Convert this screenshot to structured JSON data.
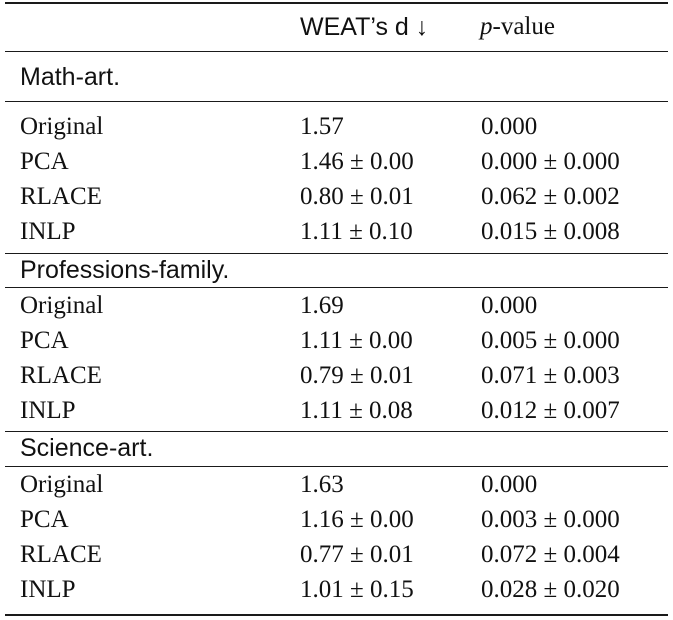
{
  "table": {
    "header": {
      "method": "",
      "weat_d": "WEAT’s d ↓",
      "p_value_var": "p",
      "p_value_suffix": "-value"
    },
    "sections": [
      {
        "title": "Math-art.",
        "rows": [
          {
            "method": "Original",
            "weat_d": "1.57",
            "p_value": "0.000"
          },
          {
            "method": "PCA",
            "weat_d": "1.46 ± 0.00",
            "p_value": "0.000 ± 0.000"
          },
          {
            "method": "RLACE",
            "weat_d": "0.80 ± 0.01",
            "p_value": "0.062 ± 0.002"
          },
          {
            "method": "INLP",
            "weat_d": "1.11 ± 0.10",
            "p_value": "0.015 ± 0.008"
          }
        ]
      },
      {
        "title": "Professions-family.",
        "rows": [
          {
            "method": "Original",
            "weat_d": "1.69",
            "p_value": "0.000"
          },
          {
            "method": "PCA",
            "weat_d": "1.11 ± 0.00",
            "p_value": "0.005 ± 0.000"
          },
          {
            "method": "RLACE",
            "weat_d": "0.79 ± 0.01",
            "p_value": "0.071 ± 0.003"
          },
          {
            "method": "INLP",
            "weat_d": "1.11 ± 0.08",
            "p_value": "0.012 ± 0.007"
          }
        ]
      },
      {
        "title": "Science-art.",
        "rows": [
          {
            "method": "Original",
            "weat_d": "1.63",
            "p_value": "0.000"
          },
          {
            "method": "PCA",
            "weat_d": "1.16 ± 0.00",
            "p_value": "0.003 ± 0.000"
          },
          {
            "method": "RLACE",
            "weat_d": "0.77 ± 0.01",
            "p_value": "0.072 ± 0.004"
          },
          {
            "method": "INLP",
            "weat_d": "1.01 ± 0.15",
            "p_value": "0.028 ± 0.020"
          }
        ]
      }
    ]
  }
}
